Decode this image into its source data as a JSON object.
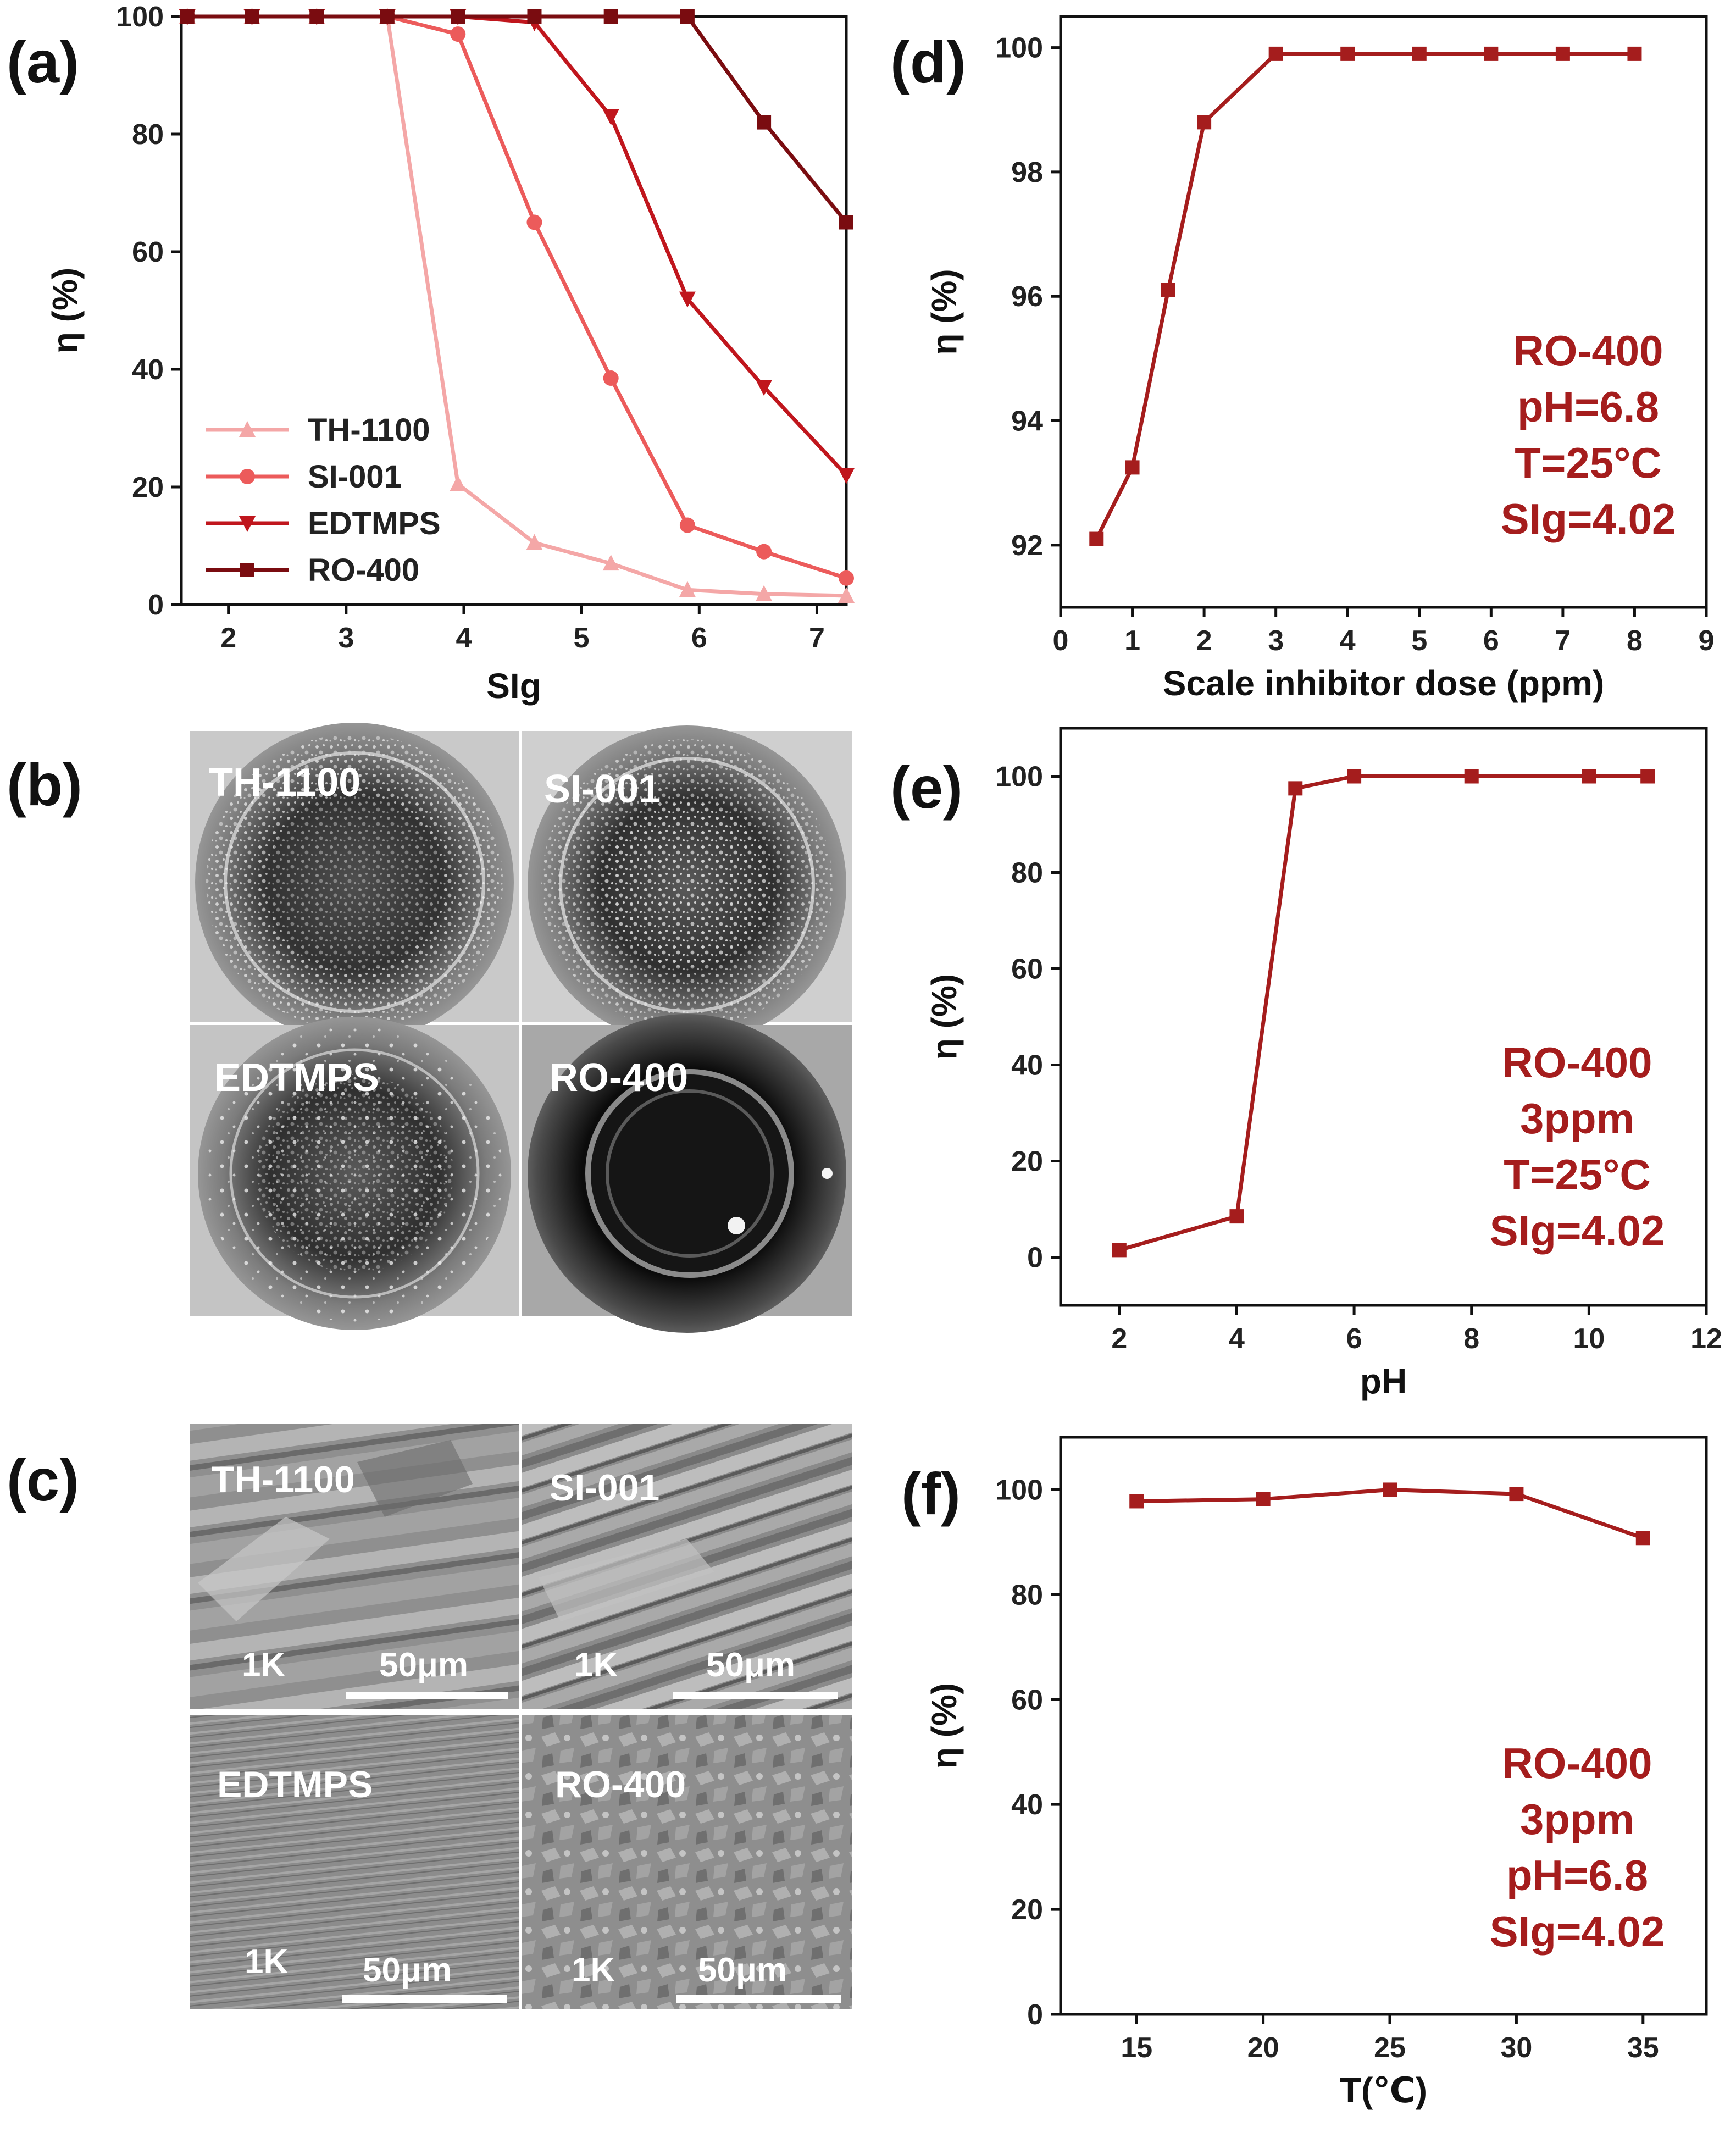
{
  "colors": {
    "TH-1100": "#f4a7a7",
    "SI-001": "#ec5b5b",
    "EDTMPS": "#c0161d",
    "RO-400": "#7a0c10",
    "single": "#a51d1d"
  },
  "chart_data": [
    {
      "id": "a",
      "panel_label": "(a)",
      "type": "line",
      "xlabel": "SIg",
      "ylabel": "η (%)",
      "xlim": [
        1.6,
        7.25
      ],
      "ylim": [
        0,
        100
      ],
      "xticks": [
        2,
        3,
        4,
        5,
        6,
        7
      ],
      "yticks": [
        0,
        20,
        40,
        60,
        80,
        100
      ],
      "legend_position": "bottom-left",
      "series": [
        {
          "name": "TH-1100",
          "marker": "triangle-up",
          "x": [
            1.65,
            2.2,
            2.75,
            3.35,
            3.95,
            4.6,
            5.25,
            5.9,
            6.55,
            7.25
          ],
          "y": [
            100,
            100,
            100,
            100,
            20.5,
            10.5,
            7,
            2.5,
            1.8,
            1.5
          ]
        },
        {
          "name": "SI-001",
          "marker": "circle",
          "x": [
            1.65,
            2.2,
            2.75,
            3.35,
            3.95,
            4.6,
            5.25,
            5.9,
            6.55,
            7.25
          ],
          "y": [
            100,
            100,
            100,
            100,
            97,
            65,
            38.5,
            13.5,
            9,
            4.5
          ]
        },
        {
          "name": "EDTMPS",
          "marker": "triangle-down",
          "x": [
            1.65,
            2.2,
            2.75,
            3.35,
            3.95,
            4.6,
            5.25,
            5.9,
            6.55,
            7.25
          ],
          "y": [
            100,
            100,
            100,
            100,
            100,
            99,
            83,
            52,
            37,
            22
          ]
        },
        {
          "name": "RO-400",
          "marker": "square",
          "x": [
            1.65,
            2.2,
            2.75,
            3.35,
            3.95,
            4.6,
            5.25,
            5.9,
            6.55,
            7.25
          ],
          "y": [
            100,
            100,
            100,
            100,
            100,
            100,
            100,
            100,
            82,
            65
          ]
        }
      ]
    },
    {
      "id": "d",
      "panel_label": "(d)",
      "type": "line",
      "xlabel": "Scale inhibitor dose (ppm)",
      "ylabel": "η (%)",
      "xlim": [
        0,
        9
      ],
      "ylim": [
        91,
        100.5
      ],
      "xticks": [
        0,
        1,
        2,
        3,
        4,
        5,
        6,
        7,
        8,
        9
      ],
      "yticks": [
        92,
        94,
        96,
        98,
        100
      ],
      "series": [
        {
          "name": "RO-400",
          "marker": "square",
          "x": [
            0.5,
            1,
            1.5,
            2,
            3,
            4,
            5,
            6,
            7,
            8
          ],
          "y": [
            92.1,
            93.25,
            96.1,
            98.8,
            99.9,
            99.9,
            99.9,
            99.9,
            99.9,
            99.9
          ]
        }
      ],
      "annotations": [
        "RO-400",
        "pH=6.8",
        "T=25°C",
        "SIg=4.02"
      ]
    },
    {
      "id": "e",
      "panel_label": "(e)",
      "type": "line",
      "xlabel": "pH",
      "ylabel": "η (%)",
      "xlim": [
        1,
        12
      ],
      "ylim": [
        -10,
        110
      ],
      "xticks": [
        2,
        4,
        6,
        8,
        10,
        12
      ],
      "yticks": [
        0,
        20,
        40,
        60,
        80,
        100
      ],
      "series": [
        {
          "name": "RO-400",
          "marker": "square",
          "x": [
            2,
            4,
            5,
            6,
            8,
            10,
            11
          ],
          "y": [
            1.5,
            8.5,
            97.5,
            100,
            100,
            100,
            100
          ]
        }
      ],
      "annotations": [
        "RO-400",
        "3ppm",
        "T=25°C",
        "SIg=4.02"
      ]
    },
    {
      "id": "f",
      "panel_label": "(f)",
      "type": "line",
      "xlabel": "T(℃)",
      "ylabel": "η (%)",
      "xlim": [
        12,
        37.5
      ],
      "ylim": [
        0,
        110
      ],
      "xticks": [
        15,
        20,
        25,
        30,
        35
      ],
      "yticks": [
        0,
        20,
        40,
        60,
        80,
        100
      ],
      "series": [
        {
          "name": "RO-400",
          "marker": "square",
          "x": [
            15,
            20,
            25,
            30,
            35
          ],
          "y": [
            97.8,
            98.2,
            100,
            99.2,
            90.8
          ]
        }
      ],
      "annotations": [
        "RO-400",
        "3ppm",
        "pH=6.8",
        "SIg=4.02"
      ]
    }
  ],
  "photo_panel": {
    "panel_label": "(b)",
    "images": [
      {
        "label": "TH-1100"
      },
      {
        "label": "SI-001"
      },
      {
        "label": "EDTMPS"
      },
      {
        "label": "RO-400"
      }
    ]
  },
  "sem_panel": {
    "panel_label": "(c)",
    "images": [
      {
        "label": "TH-1100",
        "magnification": "1K",
        "scale_bar": "50μm"
      },
      {
        "label": "SI-001",
        "magnification": "1K",
        "scale_bar": "50μm"
      },
      {
        "label": "EDTMPS",
        "magnification": "1K",
        "scale_bar": "50μm"
      },
      {
        "label": "RO-400",
        "magnification": "1K",
        "scale_bar": "50μm"
      }
    ]
  }
}
